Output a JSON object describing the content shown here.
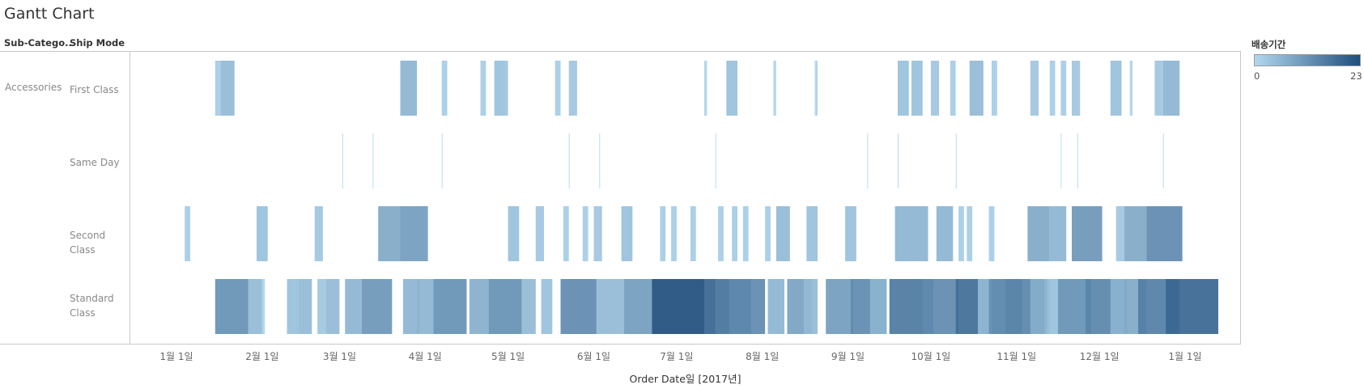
{
  "title": "Gantt Chart",
  "headers": {
    "sub_category": "Sub-Catego..",
    "ship_mode": "Ship Mode"
  },
  "legend": {
    "title": "배송기간",
    "min": "0",
    "max": "23",
    "color_low": "#b2d8ef",
    "color_high": "#1f4e7d"
  },
  "chart_data": {
    "type": "gantt",
    "title": "Gantt Chart",
    "xlabel": "Order Date일 [2017년]",
    "x_tick_labels": [
      "1월 1일",
      "2월 1일",
      "3월 1일",
      "4월 1일",
      "5월 1일",
      "6월 1일",
      "7월 1일",
      "8월 1일",
      "9월 1일",
      "10월 1일",
      "11월 1일",
      "12월 1일",
      "1월 1일"
    ],
    "x_range": [
      "2017-01-01",
      "2018-01-01"
    ],
    "color_field": "배송기간",
    "color_range": [
      0,
      23
    ],
    "categories": [
      {
        "sub_category": "Accessories",
        "ship_modes": [
          {
            "name": "First Class",
            "bars": [
              {
                "start": "2017-01-15",
                "duration": 2
              },
              {
                "start": "2017-01-17",
                "duration": 5
              },
              {
                "start": "2017-03-23",
                "duration": 6
              },
              {
                "start": "2017-04-07",
                "duration": 2
              },
              {
                "start": "2017-04-21",
                "duration": 2
              },
              {
                "start": "2017-04-26",
                "duration": 4
              },
              {
                "start": "2017-04-28",
                "duration": 3
              },
              {
                "start": "2017-05-18",
                "duration": 2
              },
              {
                "start": "2017-05-23",
                "duration": 3
              },
              {
                "start": "2017-07-11",
                "duration": 1
              },
              {
                "start": "2017-07-19",
                "duration": 4
              },
              {
                "start": "2017-08-05",
                "duration": 1
              },
              {
                "start": "2017-08-20",
                "duration": 1
              },
              {
                "start": "2017-09-19",
                "duration": 4
              },
              {
                "start": "2017-09-24",
                "duration": 4
              },
              {
                "start": "2017-10-01",
                "duration": 3
              },
              {
                "start": "2017-10-08",
                "duration": 2
              },
              {
                "start": "2017-10-15",
                "duration": 5
              },
              {
                "start": "2017-10-23",
                "duration": 2
              },
              {
                "start": "2017-11-06",
                "duration": 3
              },
              {
                "start": "2017-11-13",
                "duration": 2
              },
              {
                "start": "2017-11-17",
                "duration": 2
              },
              {
                "start": "2017-11-21",
                "duration": 3
              },
              {
                "start": "2017-12-05",
                "duration": 4
              },
              {
                "start": "2017-12-12",
                "duration": 1
              },
              {
                "start": "2017-12-21",
                "duration": 3
              },
              {
                "start": "2017-12-24",
                "duration": 6
              }
            ]
          },
          {
            "name": "Same Day",
            "bars": [
              {
                "start": "2017-03-02",
                "duration": 0
              },
              {
                "start": "2017-03-13",
                "duration": 0
              },
              {
                "start": "2017-04-07",
                "duration": 0
              },
              {
                "start": "2017-05-23",
                "duration": 0
              },
              {
                "start": "2017-06-03",
                "duration": 0
              },
              {
                "start": "2017-07-15",
                "duration": 0
              },
              {
                "start": "2017-09-08",
                "duration": 0
              },
              {
                "start": "2017-09-19",
                "duration": 0
              },
              {
                "start": "2017-10-10",
                "duration": 0
              },
              {
                "start": "2017-11-17",
                "duration": 0
              },
              {
                "start": "2017-11-23",
                "duration": 0
              },
              {
                "start": "2017-12-24",
                "duration": 0
              }
            ]
          },
          {
            "name": "Second Class",
            "bars": [
              {
                "start": "2017-01-04",
                "duration": 2
              },
              {
                "start": "2017-01-30",
                "duration": 4
              },
              {
                "start": "2017-02-20",
                "duration": 3
              },
              {
                "start": "2017-03-15",
                "duration": 8
              },
              {
                "start": "2017-03-23",
                "duration": 10
              },
              {
                "start": "2017-05-01",
                "duration": 4
              },
              {
                "start": "2017-05-11",
                "duration": 3
              },
              {
                "start": "2017-05-21",
                "duration": 2
              },
              {
                "start": "2017-05-28",
                "duration": 2
              },
              {
                "start": "2017-06-01",
                "duration": 3
              },
              {
                "start": "2017-06-11",
                "duration": 4
              },
              {
                "start": "2017-06-25",
                "duration": 2
              },
              {
                "start": "2017-06-29",
                "duration": 2
              },
              {
                "start": "2017-07-06",
                "duration": 2
              },
              {
                "start": "2017-07-16",
                "duration": 2
              },
              {
                "start": "2017-07-21",
                "duration": 2
              },
              {
                "start": "2017-07-25",
                "duration": 2
              },
              {
                "start": "2017-08-02",
                "duration": 2
              },
              {
                "start": "2017-08-06",
                "duration": 5
              },
              {
                "start": "2017-08-17",
                "duration": 4
              },
              {
                "start": "2017-08-31",
                "duration": 4
              },
              {
                "start": "2017-09-18",
                "duration": 6
              },
              {
                "start": "2017-09-24",
                "duration": 6
              },
              {
                "start": "2017-10-03",
                "duration": 6
              },
              {
                "start": "2017-10-11",
                "duration": 2
              },
              {
                "start": "2017-10-14",
                "duration": 2
              },
              {
                "start": "2017-10-22",
                "duration": 2
              },
              {
                "start": "2017-11-05",
                "duration": 8
              },
              {
                "start": "2017-11-13",
                "duration": 6
              },
              {
                "start": "2017-11-21",
                "duration": 11
              },
              {
                "start": "2017-12-07",
                "duration": 3
              },
              {
                "start": "2017-12-10",
                "duration": 8
              },
              {
                "start": "2017-12-18",
                "duration": 13
              }
            ]
          },
          {
            "name": "Standard Class",
            "bars": [
              {
                "start": "2017-01-15",
                "duration": 12
              },
              {
                "start": "2017-01-27",
                "duration": 5
              },
              {
                "start": "2017-02-01",
                "duration": 1
              },
              {
                "start": "2017-02-10",
                "duration": 4
              },
              {
                "start": "2017-02-14",
                "duration": 5
              },
              {
                "start": "2017-02-21",
                "duration": 3
              },
              {
                "start": "2017-02-24",
                "duration": 5
              },
              {
                "start": "2017-03-03",
                "duration": 6
              },
              {
                "start": "2017-03-09",
                "duration": 11
              },
              {
                "start": "2017-03-24",
                "duration": 6
              },
              {
                "start": "2017-03-29",
                "duration": 6
              },
              {
                "start": "2017-04-04",
                "duration": 12
              },
              {
                "start": "2017-04-17",
                "duration": 7
              },
              {
                "start": "2017-04-24",
                "duration": 12
              },
              {
                "start": "2017-05-06",
                "duration": 5
              },
              {
                "start": "2017-05-13",
                "duration": 4
              },
              {
                "start": "2017-05-20",
                "duration": 13
              },
              {
                "start": "2017-06-02",
                "duration": 5
              },
              {
                "start": "2017-06-07",
                "duration": 5
              },
              {
                "start": "2017-06-12",
                "duration": 10
              },
              {
                "start": "2017-06-22",
                "duration": 23
              },
              {
                "start": "2017-07-11",
                "duration": 17
              },
              {
                "start": "2017-07-20",
                "duration": 13
              },
              {
                "start": "2017-08-03",
                "duration": 6
              },
              {
                "start": "2017-08-10",
                "duration": 9
              },
              {
                "start": "2017-08-16",
                "duration": 5
              },
              {
                "start": "2017-08-24",
                "duration": 10
              },
              {
                "start": "2017-09-02",
                "duration": 13
              },
              {
                "start": "2017-09-09",
                "duration": 6
              },
              {
                "start": "2017-09-16",
                "duration": 16
              },
              {
                "start": "2017-09-28",
                "duration": 13
              },
              {
                "start": "2017-10-10",
                "duration": 18
              },
              {
                "start": "2017-10-18",
                "duration": 5
              },
              {
                "start": "2017-10-22",
                "duration": 12
              },
              {
                "start": "2017-10-28",
                "duration": 14
              },
              {
                "start": "2017-11-06",
                "duration": 7
              },
              {
                "start": "2017-11-12",
                "duration": 4
              },
              {
                "start": "2017-11-16",
                "duration": 12
              },
              {
                "start": "2017-11-26",
                "duration": 14
              },
              {
                "start": "2017-12-05",
                "duration": 6
              },
              {
                "start": "2017-12-10",
                "duration": 8
              },
              {
                "start": "2017-12-15",
                "duration": 15
              },
              {
                "start": "2017-12-25",
                "duration": 19
              }
            ]
          }
        ]
      }
    ]
  }
}
